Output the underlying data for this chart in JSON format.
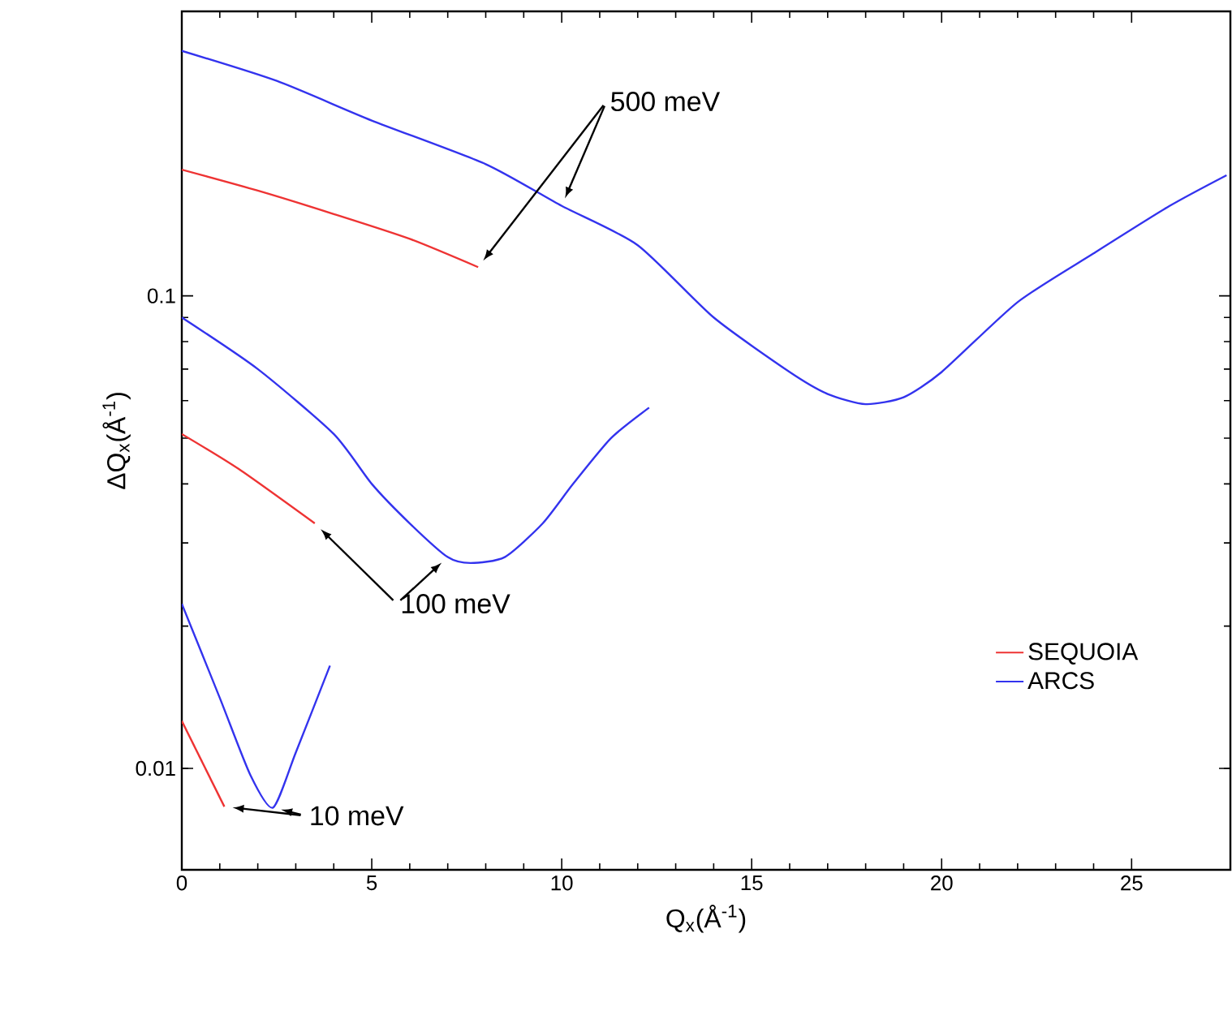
{
  "chart_data": {
    "type": "line",
    "xlabel": "Q$_{x}$(Å$^{-1}$)",
    "ylabel": "ΔQ$_{x}$(Å$^{-1}$)",
    "log": "y",
    "xlim": [
      0,
      27.6
    ],
    "ylim": [
      0.0061,
      0.4
    ],
    "xticks": [
      0,
      5,
      10,
      15,
      20,
      25
    ],
    "yticks": [
      0.01,
      0.1
    ],
    "legend": "bottom right",
    "grid": false,
    "marker": "none",
    "line_style": "solid",
    "series": [
      {
        "name": "SEQUOIA",
        "color": "#ee3333",
        "x": [
          0,
          1.12
        ],
        "values": [
          0.0126,
          0.0083
        ]
      },
      {
        "name": "ARCS",
        "color": "#3333ee",
        "x": [
          0,
          1,
          1.8,
          2.4,
          3,
          3.9
        ],
        "values": [
          0.0223,
          0.0141,
          0.0097,
          0.00826,
          0.0108,
          0.0165
        ]
      },
      {
        "color": "#ee3333",
        "x": [
          0,
          1.5,
          3.5
        ],
        "values": [
          0.051,
          0.043,
          0.033
        ]
      },
      {
        "color": "#3333ee",
        "x": [
          0,
          2,
          4,
          5,
          6,
          7,
          7.6,
          8.5,
          9.5,
          10.3,
          11.3,
          12.3
        ],
        "values": [
          0.09,
          0.07,
          0.051,
          0.04,
          0.033,
          0.028,
          0.0272,
          0.028,
          0.033,
          0.04,
          0.05,
          0.058
        ]
      },
      {
        "color": "#ee3333",
        "x": [
          0,
          2,
          4,
          6,
          7.8
        ],
        "values": [
          0.185,
          0.167,
          0.149,
          0.132,
          0.115
        ]
      },
      {
        "color": "#3333ee",
        "x": [
          0,
          2.5,
          5,
          8,
          10,
          12,
          14,
          16,
          17,
          18,
          19,
          20,
          22,
          24,
          26,
          27.5
        ],
        "values": [
          0.33,
          0.285,
          0.235,
          0.19,
          0.155,
          0.128,
          0.09,
          0.069,
          0.062,
          0.059,
          0.061,
          0.069,
          0.097,
          0.123,
          0.155,
          0.18
        ]
      }
    ],
    "annotations": [
      "500 meV",
      "100 meV",
      "10 meV"
    ]
  }
}
